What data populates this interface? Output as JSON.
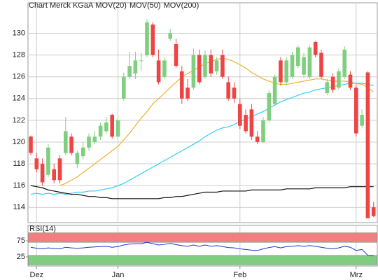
{
  "chart_data": [
    {
      "type": "candlestick",
      "title": "Chart Merck KGaA",
      "title_color": "#e07050",
      "categories": [
        "",
        "Dez",
        "",
        "",
        "",
        "",
        "",
        "",
        "",
        "",
        "",
        "",
        "",
        "",
        "",
        "Jan",
        "",
        "",
        "",
        "",
        "",
        "",
        "",
        "",
        "",
        "",
        "",
        "",
        "",
        "",
        "",
        "",
        "",
        "",
        "",
        "",
        "Feb",
        "",
        "",
        "",
        "",
        "",
        "",
        "",
        "",
        "",
        "",
        "",
        "",
        "",
        "",
        "",
        "",
        "",
        "",
        "",
        "Mrz",
        "",
        "",
        ""
      ],
      "open": [
        120.5,
        118.5,
        118,
        117,
        117.5,
        118.5,
        119,
        120.5,
        118,
        118.7,
        119.5,
        120,
        120.5,
        121,
        122.5,
        120.5,
        124,
        126,
        126.3,
        127.5,
        128,
        130.8,
        127.5,
        126,
        129.5,
        129,
        126.5,
        125,
        125,
        128,
        126,
        128,
        126.5,
        128,
        125.5,
        125,
        123.5,
        122.5,
        123,
        120.5,
        120,
        122,
        123.5,
        127.5,
        125.5,
        126,
        127,
        126.2,
        126,
        129.2,
        128.2,
        124.5,
        126,
        125,
        126,
        126.2,
        125,
        121.5,
        126.4,
        114
      ],
      "high": [
        120.6,
        119,
        118.5,
        119.8,
        118,
        118.8,
        122.3,
        120.8,
        119.2,
        120,
        120.8,
        121,
        121.8,
        122.3,
        122.6,
        122.3,
        126.4,
        128.3,
        128.3,
        128.2,
        131.3,
        131,
        128.5,
        127.8,
        130.4,
        129.5,
        127,
        125.8,
        128.6,
        128.5,
        128.4,
        128.5,
        127.8,
        128.5,
        126,
        125.5,
        124,
        123,
        123.5,
        121,
        122.3,
        124.8,
        126.2,
        127.8,
        127.8,
        128.3,
        128.9,
        128.2,
        128.9,
        129.3,
        128.5,
        125.8,
        126.3,
        126.8,
        128.8,
        126.5,
        125.3,
        123,
        126.5,
        114.5
      ],
      "low": [
        118.8,
        117.2,
        116,
        116.8,
        116.2,
        116.2,
        118.8,
        118.8,
        117.6,
        118.4,
        119.2,
        119.8,
        120.2,
        120.8,
        120.3,
        120.3,
        123.8,
        125.8,
        125.8,
        126.5,
        127.8,
        127.8,
        125.3,
        125.8,
        129.3,
        126.8,
        123.5,
        123.8,
        124.8,
        125.3,
        125.8,
        126,
        126.2,
        125.8,
        123.8,
        123.6,
        121.2,
        120.8,
        120.2,
        119.8,
        119.9,
        121.8,
        123.3,
        125.2,
        125.2,
        125.8,
        126.8,
        125.9,
        125.8,
        127.8,
        125.8,
        124.3,
        124.5,
        124.8,
        125.8,
        124.8,
        120.5,
        121.3,
        113,
        113.1
      ],
      "close": [
        119,
        117.5,
        116.3,
        119.5,
        116.5,
        116.5,
        121,
        119,
        119,
        119.5,
        120.5,
        120.5,
        121.5,
        121.8,
        120.5,
        122,
        126,
        127,
        127.5,
        127.5,
        131,
        128,
        125.5,
        127.5,
        130,
        127,
        124,
        124,
        128,
        125.5,
        128,
        126.3,
        127.5,
        126,
        124,
        124,
        121.5,
        121,
        120.5,
        120,
        122,
        124.5,
        126,
        125.5,
        127.5,
        128,
        128.7,
        127.8,
        128.7,
        128,
        126,
        125.5,
        124.8,
        126.5,
        128.5,
        125,
        120.8,
        122.5,
        113,
        113.2
      ],
      "up_color": "#7fcf7f",
      "down_color": "#ee4444",
      "overlays": [
        {
          "name": "MOV(20)",
          "color": "#f0b030",
          "values": [
            null,
            null,
            null,
            null,
            null,
            116.0,
            116.2,
            116.5,
            116.8,
            117.2,
            117.6,
            118.0,
            118.4,
            118.8,
            119.2,
            119.6,
            120.2,
            120.8,
            121.5,
            122.2,
            122.8,
            123.5,
            124.0,
            124.5,
            125.0,
            125.5,
            126.0,
            126.3,
            126.6,
            126.9,
            127.2,
            127.4,
            127.6,
            127.7,
            127.6,
            127.4,
            127.1,
            126.8,
            126.4,
            126.1,
            125.8,
            125.6,
            125.4,
            125.3,
            125.3,
            125.4,
            125.5,
            125.6,
            125.7,
            125.8,
            125.8,
            125.7,
            125.6,
            125.6,
            125.6,
            125.5,
            125.4,
            125.3,
            125.0,
            124.6
          ]
        },
        {
          "name": "MOV(50)",
          "color": "#30d0f0",
          "values": [
            115.2,
            115.3,
            115.2,
            115.3,
            115.2,
            115.3,
            115.2,
            115.3,
            115.4,
            115.4,
            115.5,
            115.5,
            115.6,
            115.7,
            115.8,
            116.0,
            116.2,
            116.5,
            116.8,
            117.1,
            117.4,
            117.7,
            118.0,
            118.3,
            118.6,
            118.9,
            119.2,
            119.5,
            119.8,
            120.1,
            120.5,
            120.8,
            121.1,
            121.3,
            121.4,
            121.6,
            121.9,
            122.1,
            122.3,
            122.6,
            122.8,
            123.1,
            123.4,
            123.7,
            123.9,
            124.1,
            124.3,
            124.5,
            124.6,
            124.8,
            124.9,
            125.0,
            125.1,
            125.2,
            125.3,
            125.4,
            125.4,
            125.4,
            125.3,
            125.2
          ]
        },
        {
          "name": "MOV(200)",
          "color": "#111111",
          "values": [
            116.0,
            115.9,
            115.8,
            115.6,
            115.5,
            115.4,
            115.3,
            115.2,
            115.2,
            115.1,
            115.0,
            115.0,
            114.9,
            114.9,
            114.8,
            114.8,
            114.8,
            114.8,
            114.8,
            114.8,
            114.8,
            114.8,
            114.8,
            114.9,
            114.9,
            115.0,
            115.0,
            115.1,
            115.2,
            115.3,
            115.4,
            115.4,
            115.4,
            115.5,
            115.5,
            115.5,
            115.5,
            115.5,
            115.6,
            115.6,
            115.6,
            115.6,
            115.6,
            115.6,
            115.7,
            115.7,
            115.7,
            115.7,
            115.7,
            115.8,
            115.8,
            115.8,
            115.8,
            115.8,
            115.8,
            115.9,
            115.9,
            115.9,
            115.9,
            115.9
          ]
        }
      ],
      "ylim": [
        112.6,
        132.8
      ],
      "yticks": [
        114,
        116,
        118,
        120,
        122,
        124,
        126,
        128,
        130
      ],
      "grid": true
    },
    {
      "type": "line",
      "title": "RSI(14)",
      "color": "#2233cc",
      "values": [
        55,
        52,
        50,
        53,
        51,
        50,
        55,
        53,
        52,
        53,
        55,
        56,
        57,
        58,
        55,
        57,
        62,
        65,
        66,
        66,
        70,
        66,
        62,
        64,
        67,
        63,
        60,
        58,
        62,
        58,
        62,
        58,
        60,
        57,
        54,
        53,
        50,
        48,
        46,
        45,
        50,
        54,
        57,
        53,
        57,
        58,
        60,
        58,
        60,
        58,
        55,
        52,
        50,
        53,
        58,
        55,
        45,
        48,
        30,
        28
      ],
      "ylim": [
        0,
        100
      ],
      "yticks": [
        25,
        75
      ],
      "bands": [
        {
          "from": 70,
          "to": 100,
          "color": "#f08080"
        },
        {
          "from": 0,
          "to": 30,
          "color": "#80cc80"
        }
      ]
    }
  ]
}
